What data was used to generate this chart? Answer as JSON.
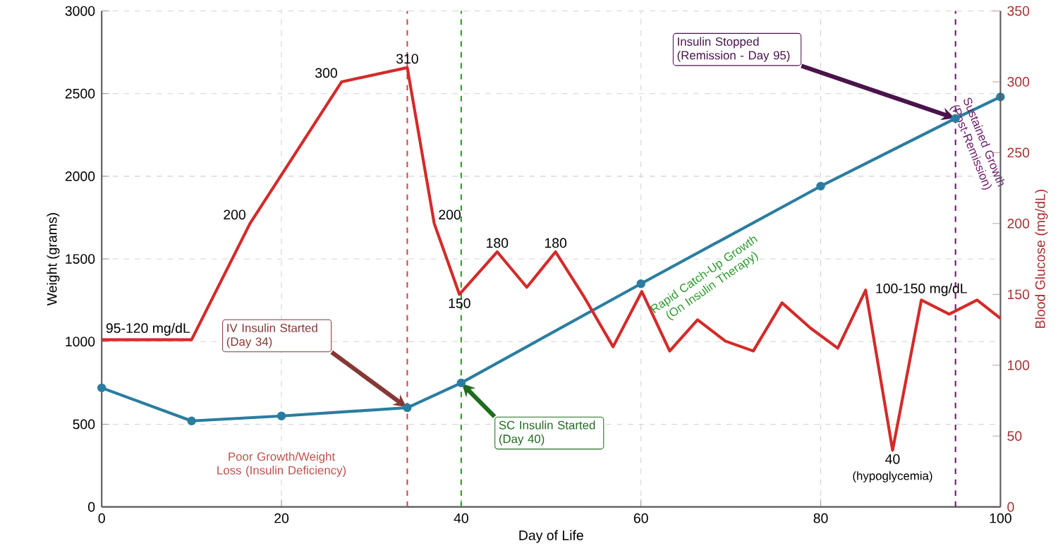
{
  "chart_data": {
    "type": "line",
    "xlabel": "Day of Life",
    "ylabel": "Weight (grams)",
    "y2label": "Blood Glucose (mg/dL)",
    "xlim": [
      0,
      100
    ],
    "xticks": [
      0,
      20,
      40,
      60,
      80,
      100
    ],
    "ylim": [
      0,
      3000
    ],
    "yticks": [
      0,
      500,
      1000,
      1500,
      2000,
      2500,
      3000
    ],
    "y2lim": [
      0,
      350
    ],
    "y2ticks": [
      0,
      50,
      100,
      150,
      200,
      250,
      300,
      350
    ],
    "grid": true,
    "series": [
      {
        "color": "#2b7da0",
        "marker": "circle",
        "x": [
          0,
          10,
          20,
          34,
          40,
          60,
          80,
          95,
          100
        ],
        "values": [
          720,
          520,
          550,
          600,
          750,
          1350,
          1940,
          2350,
          2480
        ]
      },
      {
        "color": "#d42a2a",
        "marker": "none",
        "axis": "y2",
        "x": [
          0,
          10,
          16.5,
          26.7,
          34,
          37,
          39.8,
          44,
          47.3,
          50.5,
          53.6,
          56.9,
          60.1,
          63.2,
          66.3,
          69.4,
          72.5,
          75.7,
          78.9,
          81.9,
          85,
          88,
          91.2,
          94.3,
          97.4,
          100
        ],
        "values": [
          118,
          118,
          200,
          300,
          310,
          200,
          150,
          180,
          155,
          180,
          149,
          113,
          152,
          110,
          132,
          117,
          110,
          144,
          126,
          112,
          153,
          40,
          146,
          136,
          146,
          133
        ],
        "value_labels": [
          "95-120 mg/dL",
          null,
          "200",
          "300",
          "310",
          "200",
          "150",
          "180",
          null,
          "180",
          null,
          null,
          null,
          null,
          null,
          null,
          null,
          null,
          null,
          null,
          null,
          "40",
          "100-150 mg/dL",
          null,
          null,
          null
        ]
      }
    ],
    "ref_lines": [
      {
        "axis": "x",
        "value": 34,
        "color": "#c0504d",
        "line_style": "dashed"
      },
      {
        "axis": "x",
        "value": 40,
        "color": "#2e9a2e",
        "line_style": "dashed"
      },
      {
        "axis": "x",
        "value": 95,
        "color": "#6a1b6a",
        "line_style": "dashed"
      }
    ],
    "annotations": [
      {
        "text": "IV Insulin Started (Day 34)",
        "x": 34,
        "y": 600
      },
      {
        "text": "SC Insulin Started (Day 40)",
        "x": 40,
        "y": 750
      },
      {
        "text": "Insulin Stopped (Remission - Day 95)",
        "x": 95,
        "y": 2350
      },
      "Poor Growth/Weight Loss (Insulin Deficiency)",
      "Rapid Catch-Up Growth (On Insulin Therapy)",
      "Sustained Growth (Post-Remission)",
      "(hypoglycemia)"
    ]
  }
}
